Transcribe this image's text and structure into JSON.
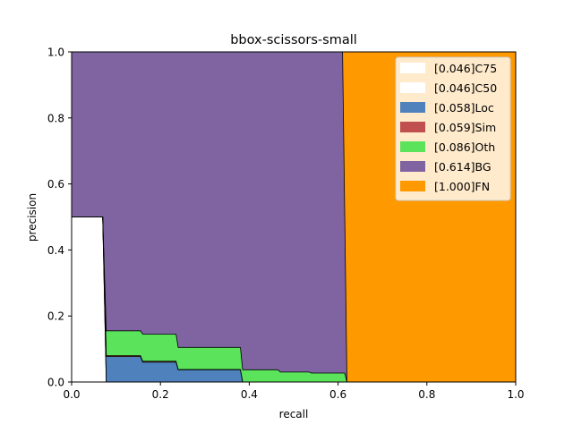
{
  "chart_data": {
    "type": "area",
    "title": "bbox-scissors-small",
    "xlabel": "recall",
    "ylabel": "precision",
    "xlim": [
      0,
      1
    ],
    "ylim": [
      0,
      1
    ],
    "x_ticks": [
      "0.0",
      "0.2",
      "0.4",
      "0.6",
      "0.8",
      "1.0"
    ],
    "y_ticks": [
      "0.0",
      "0.2",
      "0.4",
      "0.6",
      "0.8",
      "1.0"
    ],
    "grid": false,
    "legend_position": "top-right",
    "series": [
      {
        "name": "[0.046]C75",
        "color": "#ffffff",
        "points": [
          [
            0,
            0.5
          ],
          [
            0.07,
            0.5
          ],
          [
            0.078,
            0.0
          ],
          [
            1.0,
            0.0
          ]
        ]
      },
      {
        "name": "[0.046]C50",
        "color": "#ffffff",
        "points": [
          [
            0,
            0.5
          ],
          [
            0.07,
            0.5
          ],
          [
            0.078,
            0.0
          ],
          [
            1.0,
            0.0
          ]
        ]
      },
      {
        "name": "[0.058]Loc",
        "color": "#4f81bd",
        "points": [
          [
            0,
            0.5
          ],
          [
            0.07,
            0.5
          ],
          [
            0.078,
            0.077
          ],
          [
            0.155,
            0.077
          ],
          [
            0.16,
            0.06
          ],
          [
            0.235,
            0.06
          ],
          [
            0.24,
            0.037
          ],
          [
            0.38,
            0.037
          ],
          [
            0.385,
            0.0
          ],
          [
            1.0,
            0.0
          ]
        ]
      },
      {
        "name": "[0.059]Sim",
        "color": "#c0504d",
        "points": [
          [
            0,
            0.5
          ],
          [
            0.07,
            0.5
          ],
          [
            0.078,
            0.08
          ],
          [
            0.155,
            0.08
          ],
          [
            0.16,
            0.063
          ],
          [
            0.235,
            0.063
          ],
          [
            0.24,
            0.038
          ],
          [
            0.38,
            0.038
          ],
          [
            0.385,
            0.0
          ],
          [
            1.0,
            0.0
          ]
        ]
      },
      {
        "name": "[0.086]Oth",
        "color": "#5be35b",
        "points": [
          [
            0,
            0.5
          ],
          [
            0.07,
            0.5
          ],
          [
            0.078,
            0.155
          ],
          [
            0.155,
            0.155
          ],
          [
            0.16,
            0.145
          ],
          [
            0.235,
            0.145
          ],
          [
            0.24,
            0.105
          ],
          [
            0.38,
            0.105
          ],
          [
            0.385,
            0.037
          ],
          [
            0.465,
            0.037
          ],
          [
            0.47,
            0.03
          ],
          [
            0.535,
            0.03
          ],
          [
            0.54,
            0.027
          ],
          [
            0.615,
            0.027
          ],
          [
            0.62,
            0.0
          ],
          [
            1.0,
            0.0
          ]
        ]
      },
      {
        "name": "[0.614]BG",
        "color": "#8064a2",
        "points": [
          [
            0,
            1.0
          ],
          [
            0.61,
            1.0
          ],
          [
            0.62,
            0.0
          ],
          [
            1.0,
            0.0
          ]
        ]
      },
      {
        "name": "[1.000]FN",
        "color": "#ff9900",
        "points": [
          [
            0,
            1.0
          ],
          [
            1.0,
            1.0
          ]
        ]
      }
    ]
  }
}
